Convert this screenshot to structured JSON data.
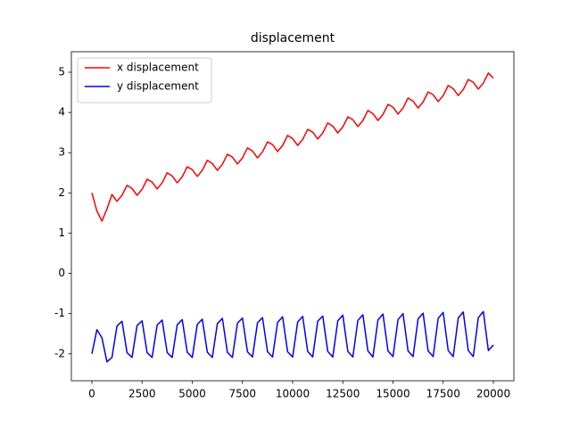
{
  "chart_data": {
    "type": "line",
    "title": "displacement",
    "x": [
      0,
      250,
      500,
      750,
      1000,
      1250,
      1500,
      1750,
      2000,
      2250,
      2500,
      2750,
      3000,
      3250,
      3500,
      3750,
      4000,
      4250,
      4500,
      4750,
      5000,
      5250,
      5500,
      5750,
      6000,
      6250,
      6500,
      6750,
      7000,
      7250,
      7500,
      7750,
      8000,
      8250,
      8500,
      8750,
      9000,
      9250,
      9500,
      9750,
      10000,
      10250,
      10500,
      10750,
      11000,
      11250,
      11500,
      11750,
      12000,
      12250,
      12500,
      12750,
      13000,
      13250,
      13500,
      13750,
      14000,
      14250,
      14500,
      14750,
      15000,
      15250,
      15500,
      15750,
      16000,
      16250,
      16500,
      16750,
      17000,
      17250,
      17500,
      17750,
      18000,
      18250,
      18500,
      18750,
      19000,
      19250,
      19500,
      19750,
      20000
    ],
    "series": [
      {
        "name": "x displacement",
        "color": "#ff0000",
        "values": [
          2.0,
          1.55,
          1.3,
          1.6,
          1.96,
          1.79,
          1.94,
          2.19,
          2.11,
          1.94,
          2.09,
          2.34,
          2.27,
          2.1,
          2.25,
          2.5,
          2.42,
          2.25,
          2.4,
          2.65,
          2.58,
          2.41,
          2.56,
          2.81,
          2.73,
          2.56,
          2.71,
          2.96,
          2.89,
          2.72,
          2.87,
          3.12,
          3.04,
          2.87,
          3.02,
          3.27,
          3.2,
          3.03,
          3.18,
          3.43,
          3.35,
          3.18,
          3.33,
          3.58,
          3.51,
          3.34,
          3.49,
          3.74,
          3.66,
          3.49,
          3.64,
          3.89,
          3.82,
          3.65,
          3.8,
          4.05,
          3.97,
          3.8,
          3.95,
          4.2,
          4.13,
          3.96,
          4.11,
          4.36,
          4.28,
          4.11,
          4.26,
          4.51,
          4.44,
          4.27,
          4.42,
          4.67,
          4.59,
          4.42,
          4.57,
          4.82,
          4.75,
          4.58,
          4.73,
          4.98,
          4.85
        ]
      },
      {
        "name": "y displacement",
        "color": "#0000ff",
        "values": [
          -2.0,
          -1.4,
          -1.6,
          -2.2,
          -2.09,
          -1.31,
          -1.19,
          -1.97,
          -2.09,
          -1.3,
          -1.18,
          -1.97,
          -2.09,
          -1.29,
          -1.16,
          -1.97,
          -2.09,
          -1.28,
          -1.15,
          -1.96,
          -2.09,
          -1.27,
          -1.14,
          -1.96,
          -2.09,
          -1.25,
          -1.12,
          -1.96,
          -2.09,
          -1.24,
          -1.11,
          -1.95,
          -2.08,
          -1.23,
          -1.1,
          -1.95,
          -2.08,
          -1.22,
          -1.08,
          -1.95,
          -2.08,
          -1.21,
          -1.07,
          -1.94,
          -2.08,
          -1.19,
          -1.06,
          -1.94,
          -2.08,
          -1.18,
          -1.04,
          -1.94,
          -2.08,
          -1.17,
          -1.03,
          -1.93,
          -2.08,
          -1.16,
          -1.01,
          -1.93,
          -2.07,
          -1.15,
          -1.0,
          -1.93,
          -2.07,
          -1.13,
          -0.99,
          -1.93,
          -2.07,
          -1.12,
          -0.97,
          -1.92,
          -2.07,
          -1.11,
          -0.96,
          -1.92,
          -2.07,
          -1.1,
          -0.95,
          -1.92,
          -1.78
        ]
      }
    ],
    "xlim": [
      -1022,
      21022
    ],
    "xticks": [
      0,
      2500,
      5000,
      7500,
      10000,
      12500,
      15000,
      17500,
      20000
    ],
    "ylim": [
      -2.67,
      5.51
    ],
    "yticks": [
      -2,
      -1,
      0,
      1,
      2,
      3,
      4,
      5
    ],
    "legend": "upper left",
    "grid": false
  }
}
